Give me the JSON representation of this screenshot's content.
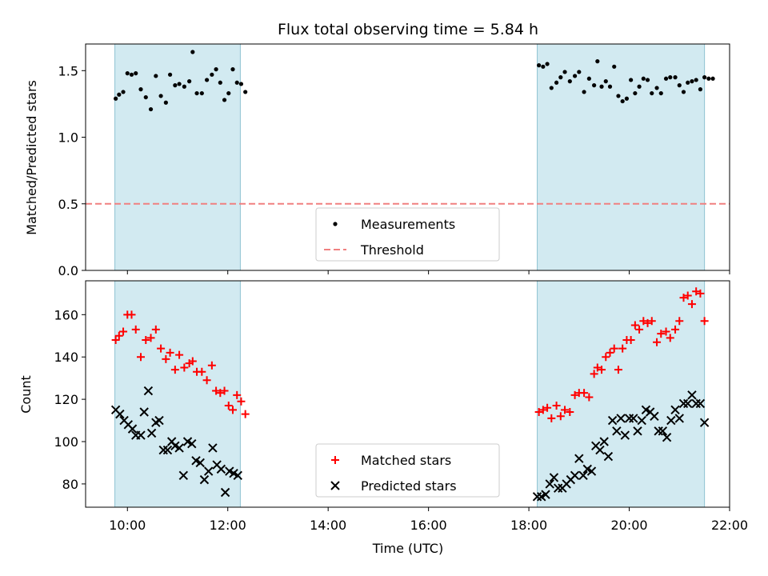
{
  "chart_data": [
    {
      "type": "scatter",
      "title": "Flux total observing time = 5.84 h",
      "ylabel": "Matched/Predicted stars",
      "xlabel": "",
      "ylim": [
        0,
        1.7
      ],
      "yticks": [
        {
          "value": 0.0,
          "label": "0.0"
        },
        {
          "value": 0.5,
          "label": "0.5"
        },
        {
          "value": 1.0,
          "label": "1.0"
        },
        {
          "value": 1.5,
          "label": "1.5"
        }
      ],
      "shaded_intervals": [
        [
          "09:45",
          "12:15"
        ],
        [
          "18:10",
          "21:30"
        ]
      ],
      "shade_color": "#add8e6",
      "threshold": 0.5,
      "legend_position": "lower center",
      "series": [
        {
          "name": "Measurements",
          "marker": "dot",
          "color": "#000000",
          "points": [
            [
              "09:46",
              1.29
            ],
            [
              "09:50",
              1.32
            ],
            [
              "09:55",
              1.34
            ],
            [
              "10:00",
              1.48
            ],
            [
              "10:05",
              1.47
            ],
            [
              "10:10",
              1.48
            ],
            [
              "10:16",
              1.36
            ],
            [
              "10:22",
              1.3
            ],
            [
              "10:28",
              1.21
            ],
            [
              "10:34",
              1.46
            ],
            [
              "10:40",
              1.31
            ],
            [
              "10:46",
              1.26
            ],
            [
              "10:51",
              1.47
            ],
            [
              "10:57",
              1.39
            ],
            [
              "11:02",
              1.4
            ],
            [
              "11:08",
              1.38
            ],
            [
              "11:14",
              1.42
            ],
            [
              "11:18",
              1.64
            ],
            [
              "11:23",
              1.33
            ],
            [
              "11:29",
              1.33
            ],
            [
              "11:35",
              1.43
            ],
            [
              "11:41",
              1.47
            ],
            [
              "11:46",
              1.51
            ],
            [
              "11:51",
              1.41
            ],
            [
              "11:56",
              1.28
            ],
            [
              "12:01",
              1.33
            ],
            [
              "12:06",
              1.51
            ],
            [
              "12:11",
              1.41
            ],
            [
              "12:16",
              1.4
            ],
            [
              "12:21",
              1.34
            ],
            [
              "18:12",
              1.54
            ],
            [
              "18:17",
              1.53
            ],
            [
              "18:22",
              1.55
            ],
            [
              "18:27",
              1.37
            ],
            [
              "18:33",
              1.41
            ],
            [
              "18:38",
              1.45
            ],
            [
              "18:43",
              1.49
            ],
            [
              "18:49",
              1.42
            ],
            [
              "18:55",
              1.46
            ],
            [
              "19:00",
              1.49
            ],
            [
              "19:06",
              1.34
            ],
            [
              "19:12",
              1.44
            ],
            [
              "19:18",
              1.39
            ],
            [
              "19:22",
              1.57
            ],
            [
              "19:27",
              1.38
            ],
            [
              "19:32",
              1.42
            ],
            [
              "19:37",
              1.38
            ],
            [
              "19:42",
              1.53
            ],
            [
              "19:47",
              1.31
            ],
            [
              "19:52",
              1.27
            ],
            [
              "19:57",
              1.29
            ],
            [
              "20:02",
              1.43
            ],
            [
              "20:07",
              1.33
            ],
            [
              "20:12",
              1.38
            ],
            [
              "20:17",
              1.44
            ],
            [
              "20:22",
              1.43
            ],
            [
              "20:27",
              1.33
            ],
            [
              "20:33",
              1.37
            ],
            [
              "20:38",
              1.33
            ],
            [
              "20:44",
              1.44
            ],
            [
              "20:49",
              1.45
            ],
            [
              "20:55",
              1.45
            ],
            [
              "21:00",
              1.39
            ],
            [
              "21:05",
              1.34
            ],
            [
              "21:10",
              1.41
            ],
            [
              "21:15",
              1.42
            ],
            [
              "21:20",
              1.43
            ],
            [
              "21:25",
              1.36
            ],
            [
              "21:30",
              1.45
            ],
            [
              "21:35",
              1.44
            ],
            [
              "21:40",
              1.44
            ]
          ]
        },
        {
          "name": "Threshold",
          "marker": "dashed-line",
          "color": "#f08080",
          "points": [
            [
              "09:00",
              0.5
            ],
            [
              "22:00",
              0.5
            ]
          ]
        }
      ]
    },
    {
      "type": "scatter",
      "title": "",
      "xlabel": "Time (UTC)",
      "ylabel": "Count",
      "xlim": [
        "09:10",
        "22:00"
      ],
      "ylim": [
        69,
        176
      ],
      "xticks": [
        "10:00",
        "12:00",
        "14:00",
        "16:00",
        "18:00",
        "20:00",
        "22:00"
      ],
      "yticks": [
        80,
        100,
        120,
        140,
        160
      ],
      "shaded_intervals": [
        [
          "09:45",
          "12:15"
        ],
        [
          "18:10",
          "21:30"
        ]
      ],
      "shade_color": "#add8e6",
      "legend_position": "lower center",
      "series": [
        {
          "name": "Matched stars",
          "marker": "plus",
          "color": "#ff0000",
          "points": [
            [
              "09:46",
              148
            ],
            [
              "09:50",
              150
            ],
            [
              "09:55",
              152
            ],
            [
              "10:00",
              160
            ],
            [
              "10:05",
              160
            ],
            [
              "10:10",
              153
            ],
            [
              "10:16",
              140
            ],
            [
              "10:22",
              148
            ],
            [
              "10:28",
              149
            ],
            [
              "10:34",
              153
            ],
            [
              "10:40",
              144
            ],
            [
              "10:46",
              139
            ],
            [
              "10:51",
              142
            ],
            [
              "10:57",
              134
            ],
            [
              "11:02",
              141
            ],
            [
              "11:08",
              135
            ],
            [
              "11:14",
              137
            ],
            [
              "11:18",
              138
            ],
            [
              "11:23",
              133
            ],
            [
              "11:29",
              133
            ],
            [
              "11:35",
              129
            ],
            [
              "11:41",
              136
            ],
            [
              "11:46",
              124
            ],
            [
              "11:51",
              123
            ],
            [
              "11:56",
              124
            ],
            [
              "12:01",
              117
            ],
            [
              "12:06",
              115
            ],
            [
              "12:11",
              122
            ],
            [
              "12:16",
              119
            ],
            [
              "12:21",
              113
            ],
            [
              "18:12",
              114
            ],
            [
              "18:17",
              115
            ],
            [
              "18:22",
              116
            ],
            [
              "18:27",
              111
            ],
            [
              "18:33",
              117
            ],
            [
              "18:38",
              112
            ],
            [
              "18:43",
              115
            ],
            [
              "18:49",
              114
            ],
            [
              "18:55",
              122
            ],
            [
              "19:00",
              123
            ],
            [
              "19:06",
              123
            ],
            [
              "19:12",
              121
            ],
            [
              "19:18",
              132
            ],
            [
              "19:22",
              135
            ],
            [
              "19:27",
              134
            ],
            [
              "19:32",
              140
            ],
            [
              "19:37",
              142
            ],
            [
              "19:42",
              144
            ],
            [
              "19:47",
              134
            ],
            [
              "19:52",
              144
            ],
            [
              "19:57",
              148
            ],
            [
              "20:02",
              148
            ],
            [
              "20:07",
              155
            ],
            [
              "20:12",
              153
            ],
            [
              "20:17",
              157
            ],
            [
              "20:22",
              156
            ],
            [
              "20:27",
              157
            ],
            [
              "20:33",
              147
            ],
            [
              "20:38",
              151
            ],
            [
              "20:44",
              152
            ],
            [
              "20:49",
              149
            ],
            [
              "20:55",
              153
            ],
            [
              "21:00",
              157
            ],
            [
              "21:05",
              168
            ],
            [
              "21:10",
              169
            ],
            [
              "21:15",
              165
            ],
            [
              "21:20",
              171
            ],
            [
              "21:25",
              170
            ],
            [
              "21:30",
              157
            ]
          ]
        },
        {
          "name": "Predicted stars",
          "marker": "x",
          "color": "#000000",
          "points": [
            [
              "09:46",
              115
            ],
            [
              "09:51",
              113
            ],
            [
              "09:56",
              110
            ],
            [
              "10:01",
              108
            ],
            [
              "10:06",
              106
            ],
            [
              "10:10",
              103
            ],
            [
              "10:16",
              103
            ],
            [
              "10:20",
              114
            ],
            [
              "10:25",
              124
            ],
            [
              "10:29",
              104
            ],
            [
              "10:34",
              109
            ],
            [
              "10:38",
              110
            ],
            [
              "10:43",
              96
            ],
            [
              "10:48",
              96
            ],
            [
              "10:53",
              100
            ],
            [
              "10:57",
              98
            ],
            [
              "11:02",
              97
            ],
            [
              "11:07",
              84
            ],
            [
              "11:12",
              100
            ],
            [
              "11:17",
              99
            ],
            [
              "11:22",
              91
            ],
            [
              "11:27",
              90
            ],
            [
              "11:32",
              82
            ],
            [
              "11:37",
              86
            ],
            [
              "11:42",
              97
            ],
            [
              "11:47",
              89
            ],
            [
              "11:52",
              87
            ],
            [
              "11:57",
              76
            ],
            [
              "12:02",
              86
            ],
            [
              "12:07",
              85
            ],
            [
              "12:12",
              84
            ],
            [
              "18:10",
              74
            ],
            [
              "18:15",
              74
            ],
            [
              "18:20",
              75
            ],
            [
              "18:25",
              80
            ],
            [
              "18:30",
              83
            ],
            [
              "18:35",
              78
            ],
            [
              "18:40",
              78
            ],
            [
              "18:45",
              80
            ],
            [
              "18:50",
              82
            ],
            [
              "18:55",
              84
            ],
            [
              "19:00",
              92
            ],
            [
              "19:05",
              84
            ],
            [
              "19:10",
              87
            ],
            [
              "19:15",
              86
            ],
            [
              "19:20",
              98
            ],
            [
              "19:25",
              96
            ],
            [
              "19:30",
              100
            ],
            [
              "19:35",
              93
            ],
            [
              "19:40",
              110
            ],
            [
              "19:45",
              105
            ],
            [
              "19:50",
              111
            ],
            [
              "19:55",
              103
            ],
            [
              "20:00",
              111
            ],
            [
              "20:05",
              111
            ],
            [
              "20:10",
              105
            ],
            [
              "20:15",
              110
            ],
            [
              "20:20",
              115
            ],
            [
              "20:25",
              114
            ],
            [
              "20:30",
              112
            ],
            [
              "20:35",
              105
            ],
            [
              "20:40",
              105
            ],
            [
              "20:45",
              102
            ],
            [
              "20:50",
              110
            ],
            [
              "20:55",
              115
            ],
            [
              "21:00",
              111
            ],
            [
              "21:05",
              118
            ],
            [
              "21:10",
              118
            ],
            [
              "21:15",
              122
            ],
            [
              "21:20",
              118
            ],
            [
              "21:25",
              118
            ],
            [
              "21:30",
              109
            ]
          ]
        }
      ]
    }
  ]
}
